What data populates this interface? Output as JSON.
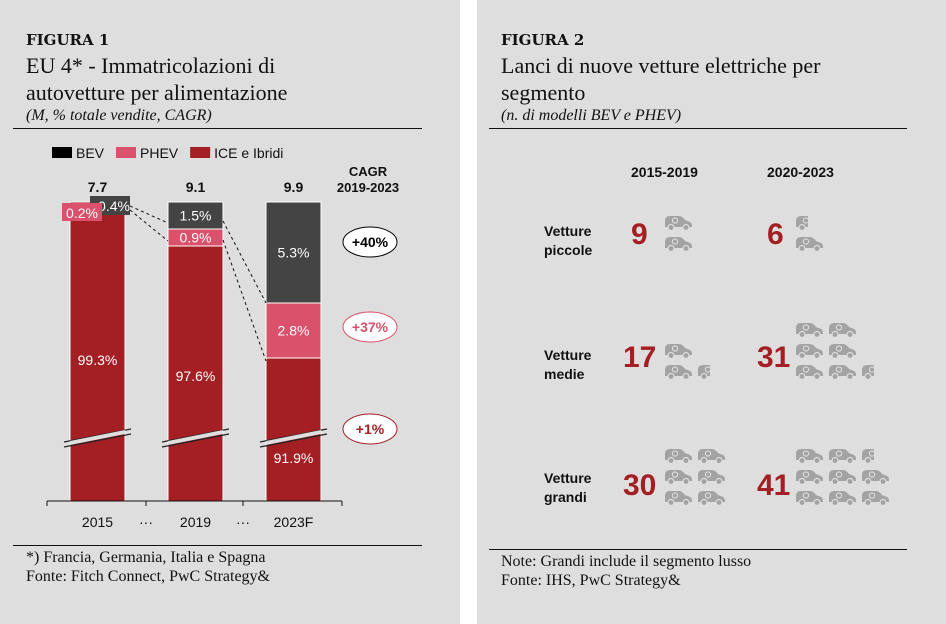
{
  "figure1": {
    "label": "FIGURA 1",
    "title_line1": "EU 4* - Immatricolazioni di",
    "title_line2": "autovetture per alimentazione",
    "subtitle": "(M, % totale vendite, CAGR)",
    "footnote1": "*) Francia, Germania, Italia e Spagna",
    "footnote2": "Fonte: Fitch Connect, PwC Strategy&",
    "cagr_header_line1": "CAGR",
    "cagr_header_line2": "2019-2023",
    "ellipsis": "···"
  },
  "figure2": {
    "label": "FIGURA 2",
    "title_line1": "Lanci di nuove vetture elettriche per",
    "title_line2": "segmento",
    "subtitle": "(n. di modelli BEV e PHEV)",
    "footnote1": "Note: Grandi include il segmento lusso",
    "footnote2": "Fonte: IHS, PwC Strategy&",
    "periods": [
      "2015-2019",
      "2020-2023"
    ],
    "segments": [
      {
        "label_line1": "Vetture",
        "label_line2": "piccole",
        "counts": [
          9,
          6
        ]
      },
      {
        "label_line1": "Vetture",
        "label_line2": "medie",
        "counts": [
          17,
          31
        ]
      },
      {
        "label_line1": "Vetture",
        "label_line2": "grandi",
        "counts": [
          30,
          41
        ]
      }
    ],
    "icon": "car-icon",
    "models_per_icon": 4,
    "count_color": "#a31f23",
    "icon_color": "#a3a3a3"
  },
  "chart_data": [
    {
      "type": "bar",
      "stacked": true,
      "title": "EU 4* - Immatricolazioni di autovetture per alimentazione",
      "subtitle": "(M, % totale vendite, CAGR)",
      "categories": [
        "2015",
        "2019",
        "2023F"
      ],
      "totals": [
        7.7,
        9.1,
        9.9
      ],
      "total_labels": [
        "7.7",
        "9.1",
        "9.9"
      ],
      "series": [
        {
          "name": "ICE e Ibridi",
          "color": "#a31f23",
          "values": [
            99.3,
            97.6,
            91.9
          ],
          "labels": [
            "99.3%",
            "97.6%",
            "91.9%"
          ]
        },
        {
          "name": "PHEV",
          "color": "#d9516a",
          "values": [
            0.2,
            0.9,
            2.8
          ],
          "labels": [
            "0.2%",
            "0.9%",
            "2.8%"
          ]
        },
        {
          "name": "BEV",
          "color": "#444444",
          "values": [
            0.4,
            1.5,
            5.3
          ],
          "labels": [
            "0.4%",
            "1.5%",
            "5.3%"
          ]
        }
      ],
      "legend": [
        {
          "name": "BEV",
          "color": "#000000"
        },
        {
          "name": "PHEV",
          "color": "#d9516a"
        },
        {
          "name": "ICE e Ibridi",
          "color": "#a31f23"
        }
      ],
      "legend_position": "top",
      "axis_break": true,
      "cagr": [
        {
          "series": "BEV",
          "label": "+40%",
          "text_color": "#000000",
          "fill": "#ffffff",
          "border": "#000000"
        },
        {
          "series": "PHEV",
          "label": "+37%",
          "text_color": "#d9516a",
          "fill": "#ffffff",
          "border": "#d9516a"
        },
        {
          "series": "ICE e Ibridi",
          "label": "+1%",
          "text_color": "#a31f23",
          "fill": "#ffffff",
          "border": "#a31f23"
        }
      ],
      "xlabel": "",
      "ylabel": ""
    },
    {
      "type": "table",
      "title": "Lanci di nuove vetture elettriche per segmento",
      "subtitle": "(n. di modelli BEV e PHEV)",
      "columns": [
        "2015-2019",
        "2020-2023"
      ],
      "rows": [
        {
          "segment": "Vetture piccole",
          "values": [
            9,
            6
          ]
        },
        {
          "segment": "Vetture medie",
          "values": [
            17,
            31
          ]
        },
        {
          "segment": "Vetture grandi",
          "values": [
            30,
            41
          ]
        }
      ]
    }
  ]
}
